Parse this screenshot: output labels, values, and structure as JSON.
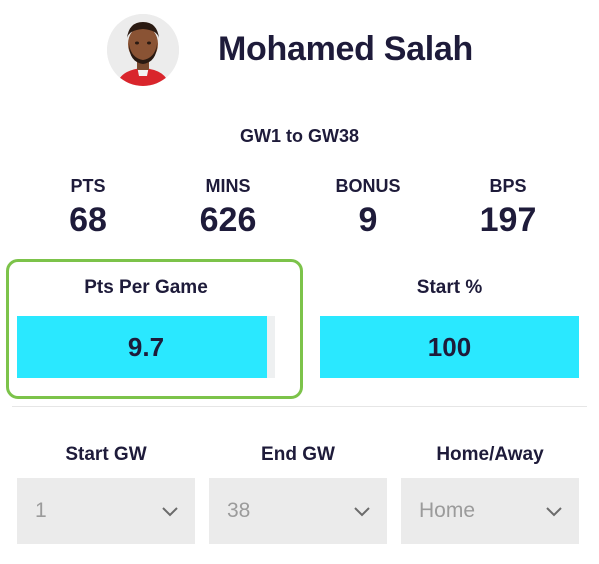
{
  "player": {
    "name": "Mohamed Salah",
    "avatar_icon": "player-portrait-icon"
  },
  "range": {
    "label": "GW1 to GW38"
  },
  "stats": [
    {
      "label": "PTS",
      "value": "68"
    },
    {
      "label": "MINS",
      "value": "626"
    },
    {
      "label": "BONUS",
      "value": "9"
    },
    {
      "label": "BPS",
      "value": "197"
    }
  ],
  "metrics": {
    "pts_per_game": {
      "label": "Pts Per Game",
      "value": "9.7",
      "fill_fraction": 0.97
    },
    "start_pct": {
      "label": "Start %",
      "value": "100",
      "fill_fraction": 1.0
    }
  },
  "filters": {
    "start_gw": {
      "label": "Start GW",
      "value": "1"
    },
    "end_gw": {
      "label": "End GW",
      "value": "38"
    },
    "home_away": {
      "label": "Home/Away",
      "value": "Home"
    }
  },
  "colors": {
    "bar": "#2ae8ff",
    "highlight": "#7cc34a",
    "text": "#1e1b3a"
  }
}
